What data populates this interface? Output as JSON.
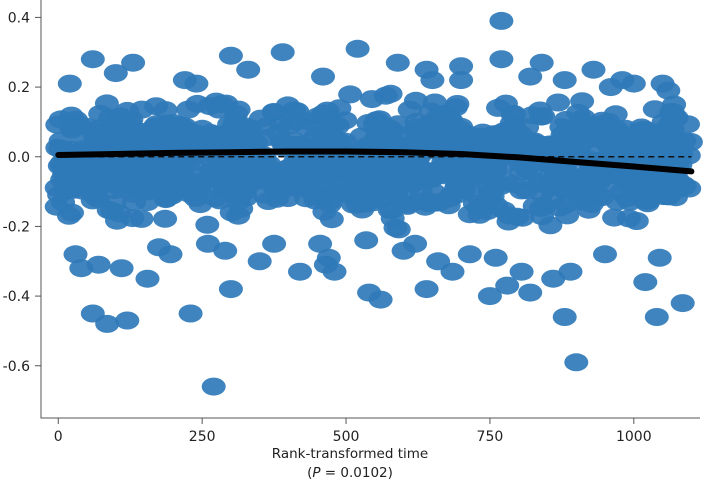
{
  "chart_data": {
    "type": "scatter",
    "xlabel": "Rank-transformed time",
    "xlabel_note": {
      "prefix": "(",
      "p_symbol": "P",
      "p_equals": " = 0.0102)"
    },
    "xlim": [
      -30,
      1115
    ],
    "ylim": [
      -0.75,
      0.45
    ],
    "xticks": [
      0,
      250,
      500,
      750,
      1000
    ],
    "yticks": [
      0.4,
      0.2,
      0.0,
      -0.2,
      -0.4,
      -0.6
    ],
    "ytick_labels": [
      "0.4",
      "0.2",
      "0.0",
      "-0.2",
      "-0.4",
      "-0.6"
    ],
    "grid": false,
    "point_color": "#2f7ab8",
    "fit_color": "#000000",
    "reference_line": {
      "y": 0.0,
      "style": "dashed"
    },
    "fit_line": {
      "x": [
        0,
        100,
        200,
        300,
        400,
        500,
        600,
        700,
        800,
        900,
        1000,
        1100
      ],
      "y": [
        0.005,
        0.008,
        0.011,
        0.013,
        0.015,
        0.015,
        0.013,
        0.008,
        -0.002,
        -0.015,
        -0.028,
        -0.042
      ]
    },
    "points": {
      "x": [
        770,
        270,
        900,
        60,
        85,
        120,
        230,
        300,
        420,
        465,
        640,
        685,
        750,
        780,
        880,
        1040,
        1085,
        1020,
        950,
        540,
        560,
        350,
        155,
        195,
        290,
        470,
        480,
        600,
        660,
        820,
        860,
        110,
        30,
        40,
        70,
        175,
        260,
        375,
        455,
        535,
        620,
        715,
        760,
        805,
        890,
        1045,
        20,
        130,
        220,
        330,
        520,
        640,
        700,
        840,
        930,
        1000,
        1070,
        60,
        300,
        390,
        650,
        770,
        880,
        980,
        1060,
        100,
        240,
        460,
        590,
        700,
        820,
        960,
        1050
      ],
      "y": [
        0.39,
        -0.66,
        -0.59,
        -0.45,
        -0.48,
        -0.47,
        -0.45,
        -0.38,
        -0.33,
        -0.31,
        -0.38,
        -0.33,
        -0.4,
        -0.37,
        -0.46,
        -0.46,
        -0.42,
        -0.36,
        -0.28,
        -0.39,
        -0.41,
        -0.3,
        -0.35,
        -0.28,
        -0.27,
        -0.29,
        -0.33,
        -0.27,
        -0.3,
        -0.39,
        -0.35,
        -0.32,
        -0.28,
        -0.32,
        -0.31,
        -0.26,
        -0.25,
        -0.25,
        -0.25,
        -0.24,
        -0.25,
        -0.28,
        -0.29,
        -0.33,
        -0.33,
        -0.29,
        0.21,
        0.27,
        0.22,
        0.25,
        0.31,
        0.25,
        0.22,
        0.27,
        0.25,
        0.21,
        0.15,
        0.28,
        0.29,
        0.3,
        0.22,
        0.28,
        0.22,
        0.22,
        0.19,
        0.24,
        0.21,
        0.23,
        0.27,
        0.26,
        0.23,
        0.2,
        0.21
      ]
    },
    "dense_band": {
      "y_min": -0.24,
      "y_max": 0.21,
      "x_min": -5,
      "x_max": 1100,
      "count": 1050
    }
  }
}
